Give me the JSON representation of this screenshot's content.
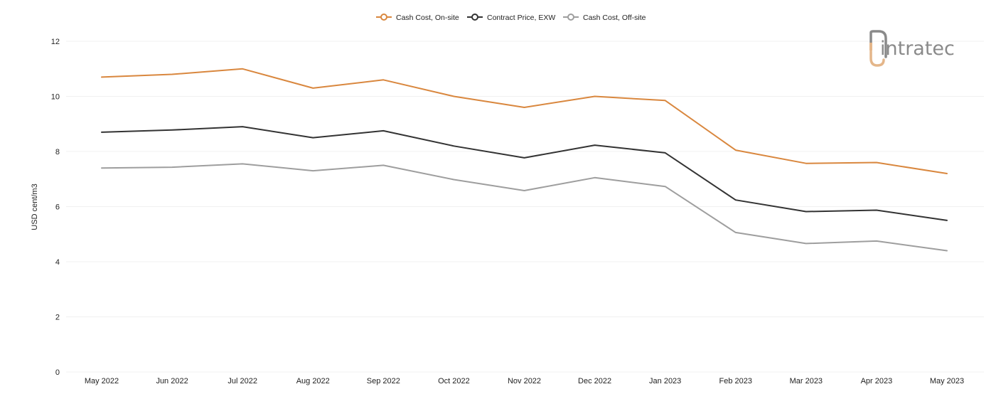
{
  "chart_data": {
    "type": "line",
    "title": "",
    "xlabel": "",
    "ylabel": "USD cent/m3",
    "ylim": [
      0,
      12
    ],
    "yticks": [
      0,
      2,
      4,
      6,
      8,
      10,
      12
    ],
    "grid": "horizontal",
    "legend_position": "top-center",
    "categories": [
      "May 2022",
      "Jun 2022",
      "Jul 2022",
      "Aug 2022",
      "Sep 2022",
      "Oct 2022",
      "Nov 2022",
      "Dec 2022",
      "Jan 2023",
      "Feb 2023",
      "Mar 2023",
      "Apr 2023",
      "May 2023"
    ],
    "series": [
      {
        "name": "Cash Cost, On-site",
        "color": "#d9873e",
        "values": [
          10.7,
          10.8,
          11.0,
          10.3,
          10.6,
          10.0,
          9.6,
          10.0,
          9.85,
          8.05,
          7.57,
          7.6,
          7.2
        ]
      },
      {
        "name": "Contract Price, EXW",
        "color": "#333333",
        "values": [
          8.7,
          8.78,
          8.9,
          8.5,
          8.75,
          8.2,
          7.77,
          8.23,
          7.95,
          6.24,
          5.82,
          5.87,
          5.5
        ]
      },
      {
        "name": "Cash Cost, Off-site",
        "color": "#9e9e9e",
        "values": [
          7.4,
          7.43,
          7.55,
          7.3,
          7.5,
          6.98,
          6.58,
          7.05,
          6.73,
          5.06,
          4.66,
          4.75,
          4.4
        ]
      }
    ]
  },
  "logo": {
    "text": "intratec",
    "icon": "intratec-logo-icon"
  }
}
